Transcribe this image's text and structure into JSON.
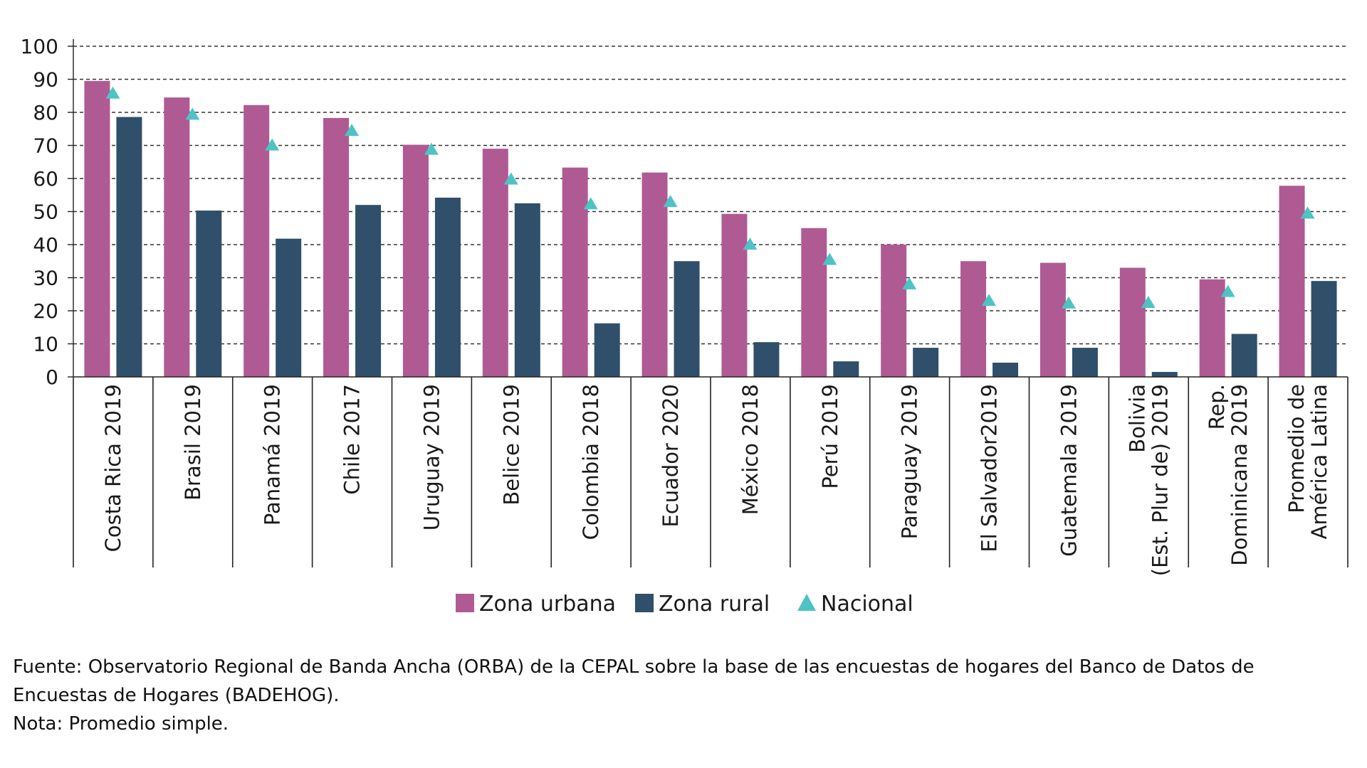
{
  "chart_data": {
    "type": "bar",
    "categories": [
      [
        "Costa Rica 2019"
      ],
      [
        "Brasil 2019"
      ],
      [
        "Panamá 2019"
      ],
      [
        "Chile 2017"
      ],
      [
        "Uruguay 2019"
      ],
      [
        "Belice 2019"
      ],
      [
        "Colombia 2018"
      ],
      [
        "Ecuador 2020"
      ],
      [
        "México 2018"
      ],
      [
        "Perú 2019"
      ],
      [
        "Paraguay 2019"
      ],
      [
        "El Salvador2019"
      ],
      [
        "Guatemala 2019"
      ],
      [
        "Bolivia",
        "(Est. Plur de) 2019"
      ],
      [
        "Rep.",
        "Dominicana 2019"
      ],
      [
        "Promedio de",
        "América Latina"
      ]
    ],
    "series": [
      {
        "name": "Zona urbana",
        "kind": "bar",
        "color": "#B05A93",
        "values": [
          89.5,
          84.5,
          82.2,
          78.3,
          70.2,
          69,
          63.3,
          61.8,
          49.3,
          45,
          40,
          35,
          34.5,
          33,
          29.5,
          57.8
        ]
      },
      {
        "name": "Zona rural",
        "kind": "bar",
        "color": "#2F4F6A",
        "values": [
          78.6,
          50.3,
          41.8,
          52,
          54.2,
          52.5,
          16.2,
          35,
          10.5,
          4.7,
          8.8,
          4.3,
          8.8,
          1.5,
          13,
          29
        ]
      },
      {
        "name": "Nacional",
        "kind": "marker",
        "color": "#4DC3C6",
        "values": [
          86,
          79.6,
          70.3,
          74.7,
          69,
          60,
          52.5,
          53.2,
          40.3,
          35.7,
          28.3,
          23.3,
          22.5,
          22.7,
          26,
          49.7
        ]
      }
    ],
    "yticks": [
      0,
      10,
      20,
      30,
      40,
      50,
      60,
      70,
      80,
      90,
      100
    ],
    "ylim": [
      0,
      100
    ],
    "grid": "horizontal-dashed",
    "legend_position": "bottom-center",
    "title": "",
    "xlabel": "",
    "ylabel": ""
  },
  "footer": {
    "source_line1": "Fuente: Observatorio Regional de Banda Ancha (ORBA) de la CEPAL sobre la base de las encuestas de hogares del Banco de Datos de",
    "source_line2": "Encuestas de Hogares (BADEHOG).",
    "note": "Nota:  Promedio simple."
  }
}
